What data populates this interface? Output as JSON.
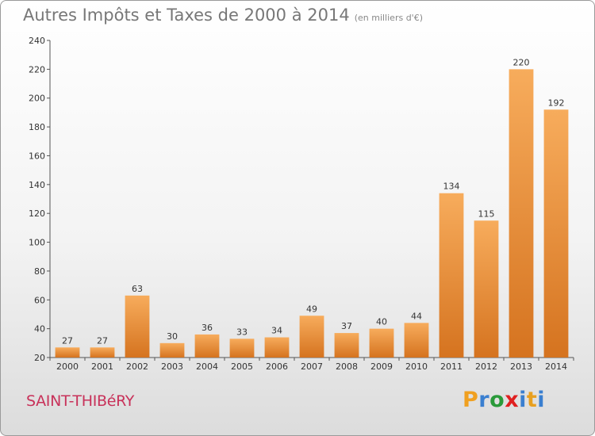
{
  "header": {
    "title": "Autres Impôts et Taxes de 2000 à 2014",
    "subtitle": "(en milliers d'€)"
  },
  "footer": {
    "commune": "SAINT-THIBéRY",
    "logo": [
      "P",
      "r",
      "o",
      "x",
      "i",
      "t",
      "i"
    ],
    "logo_colors": [
      "#f0a020",
      "#3a7fd0",
      "#2a9a3a",
      "#e02020",
      "#3a7fd0",
      "#e8a020",
      "#3a7fd0"
    ]
  },
  "colors": {
    "bar_light": "#f7ac5c",
    "bar_dark": "#d5731f",
    "axis": "#555555"
  },
  "chart_data": {
    "type": "bar",
    "title": "Autres Impôts et Taxes de 2000 à 2014",
    "subtitle": "(en milliers d'€)",
    "categories": [
      "2000",
      "2001",
      "2002",
      "2003",
      "2004",
      "2005",
      "2006",
      "2007",
      "2008",
      "2009",
      "2010",
      "2011",
      "2012",
      "2013",
      "2014"
    ],
    "values": [
      27,
      27,
      63,
      30,
      36,
      33,
      34,
      49,
      37,
      40,
      44,
      134,
      115,
      220,
      192
    ],
    "ylim": [
      20,
      240
    ],
    "yticks": [
      20,
      40,
      60,
      80,
      100,
      120,
      140,
      160,
      180,
      200,
      220,
      240
    ],
    "grid": false,
    "xlabel": "",
    "ylabel": ""
  }
}
